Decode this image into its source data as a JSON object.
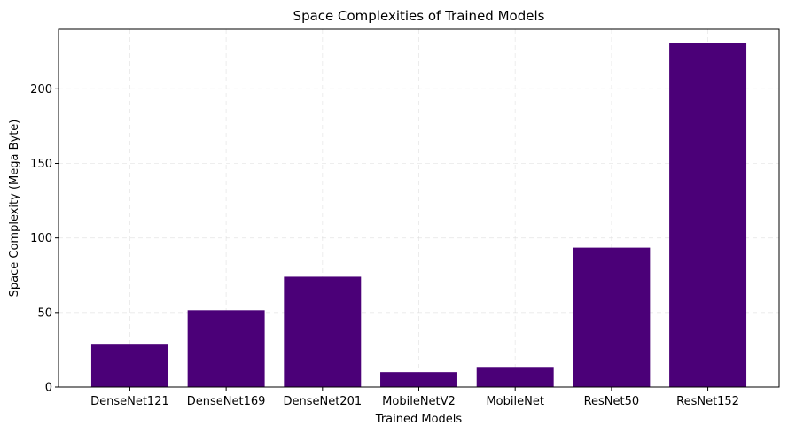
{
  "chart_data": {
    "type": "bar",
    "title": "Space Complexities of Trained Models",
    "xlabel": "Trained Models",
    "ylabel": "Space Complexity (Mega Byte)",
    "categories": [
      "DenseNet121",
      "DenseNet169",
      "DenseNet201",
      "MobileNetV2",
      "MobileNet",
      "ResNet50",
      "ResNet152"
    ],
    "values": [
      29,
      51.5,
      74,
      10,
      13.5,
      93.5,
      230.5
    ],
    "ylim": [
      0,
      240
    ],
    "yticks": [
      0,
      50,
      100,
      150,
      200
    ],
    "ytick_labels": [
      "0",
      "50",
      "100",
      "150",
      "200"
    ],
    "bar_color": "#4b0078",
    "grid": true,
    "legend": "none"
  }
}
